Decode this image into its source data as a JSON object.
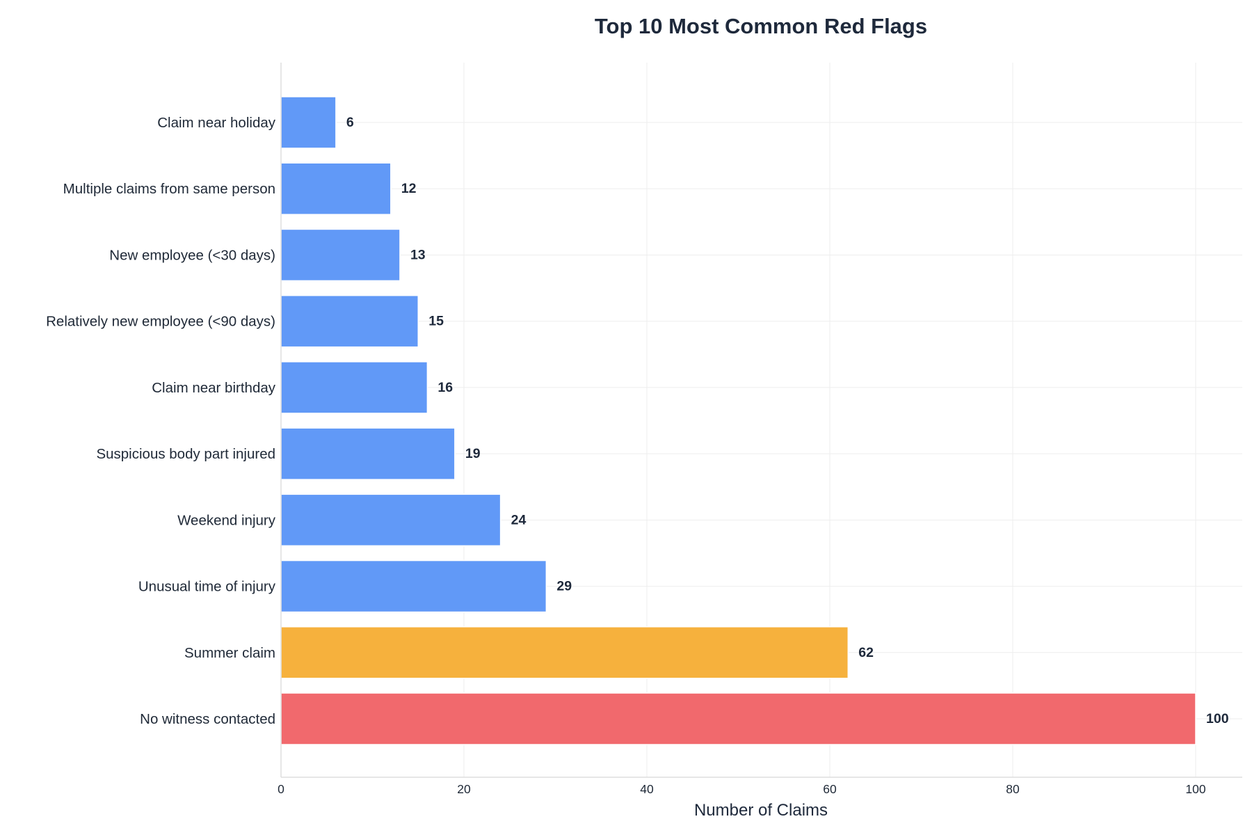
{
  "chart_data": {
    "type": "bar",
    "orientation": "horizontal",
    "title": "Top 10 Most Common Red Flags",
    "xlabel": "Number of Claims",
    "ylabel": "",
    "xlim": [
      0,
      105
    ],
    "x_ticks": [
      0,
      20,
      40,
      60,
      80,
      100
    ],
    "grid": true,
    "categories": [
      "Claim near holiday",
      "Multiple claims from same person",
      "New employee (<30 days)",
      "Relatively new employee (<90 days)",
      "Claim near birthday",
      "Suspicious body part injured",
      "Weekend injury",
      "Unusual time of injury",
      "Summer claim",
      "No witness contacted"
    ],
    "values": [
      6,
      12,
      13,
      15,
      16,
      19,
      24,
      29,
      62,
      100
    ],
    "bar_colors": [
      "#6199f7",
      "#6199f7",
      "#6199f7",
      "#6199f7",
      "#6199f7",
      "#6199f7",
      "#6199f7",
      "#6199f7",
      "#f6b13d",
      "#f1696d"
    ],
    "data_labels": [
      "6",
      "12",
      "13",
      "15",
      "16",
      "19",
      "24",
      "29",
      "62",
      "100"
    ]
  }
}
